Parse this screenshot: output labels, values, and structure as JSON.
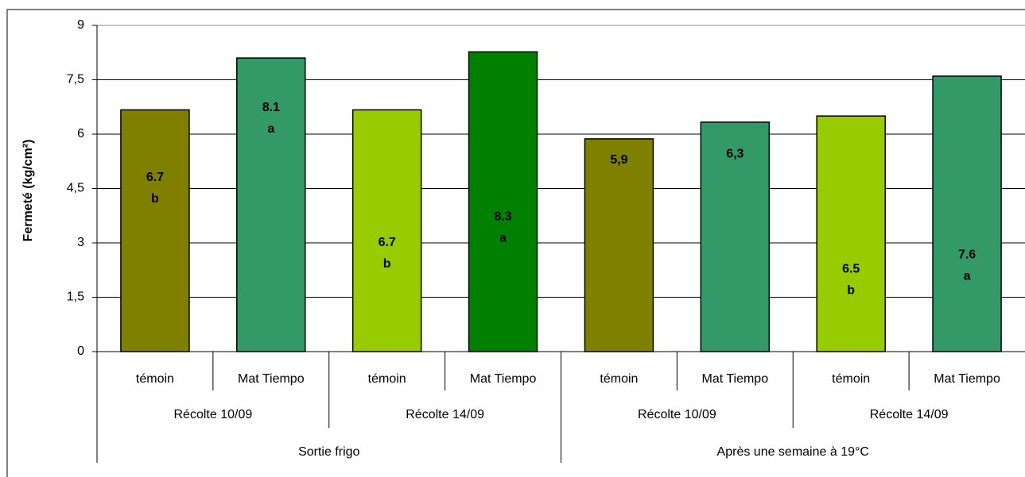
{
  "chart_data": {
    "type": "bar",
    "y_label": "Fermeté (kg/cm²)",
    "categories": [
      "témoin",
      "Mat Tiempo",
      "témoin",
      "Mat Tiempo",
      "témoin",
      "Mat Tiempo",
      "témoin",
      "Mat Tiempo"
    ],
    "groups": [
      "Récolte 10/09",
      "Récolte 14/09",
      "Récolte 10/09",
      "Récolte 14/09"
    ],
    "supergroups": [
      "Sortie frigo",
      "Après une semaine à 19°C"
    ],
    "values": [
      6.67,
      8.1,
      6.67,
      8.27,
      5.87,
      6.33,
      6.5,
      7.6
    ],
    "value_labels": [
      "6.7",
      "8.1",
      "6.7",
      "8.3",
      "5,9",
      "6,3",
      "6.5",
      "7.6"
    ],
    "significance": [
      "b",
      "a",
      "b",
      "a",
      null,
      null,
      "b",
      "a"
    ],
    "colors": [
      "#808000",
      "#339966",
      "#99cc00",
      "#008000",
      "#808000",
      "#339966",
      "#99cc00",
      "#339966"
    ],
    "ylim": [
      0,
      9
    ],
    "yticks": [
      0,
      {
        "value": 1.5,
        "label": "1,5"
      },
      3,
      {
        "value": 4.5,
        "label": "4,5"
      },
      6,
      {
        "value": 7.5,
        "label": "7,5"
      },
      9
    ],
    "grid": true
  }
}
